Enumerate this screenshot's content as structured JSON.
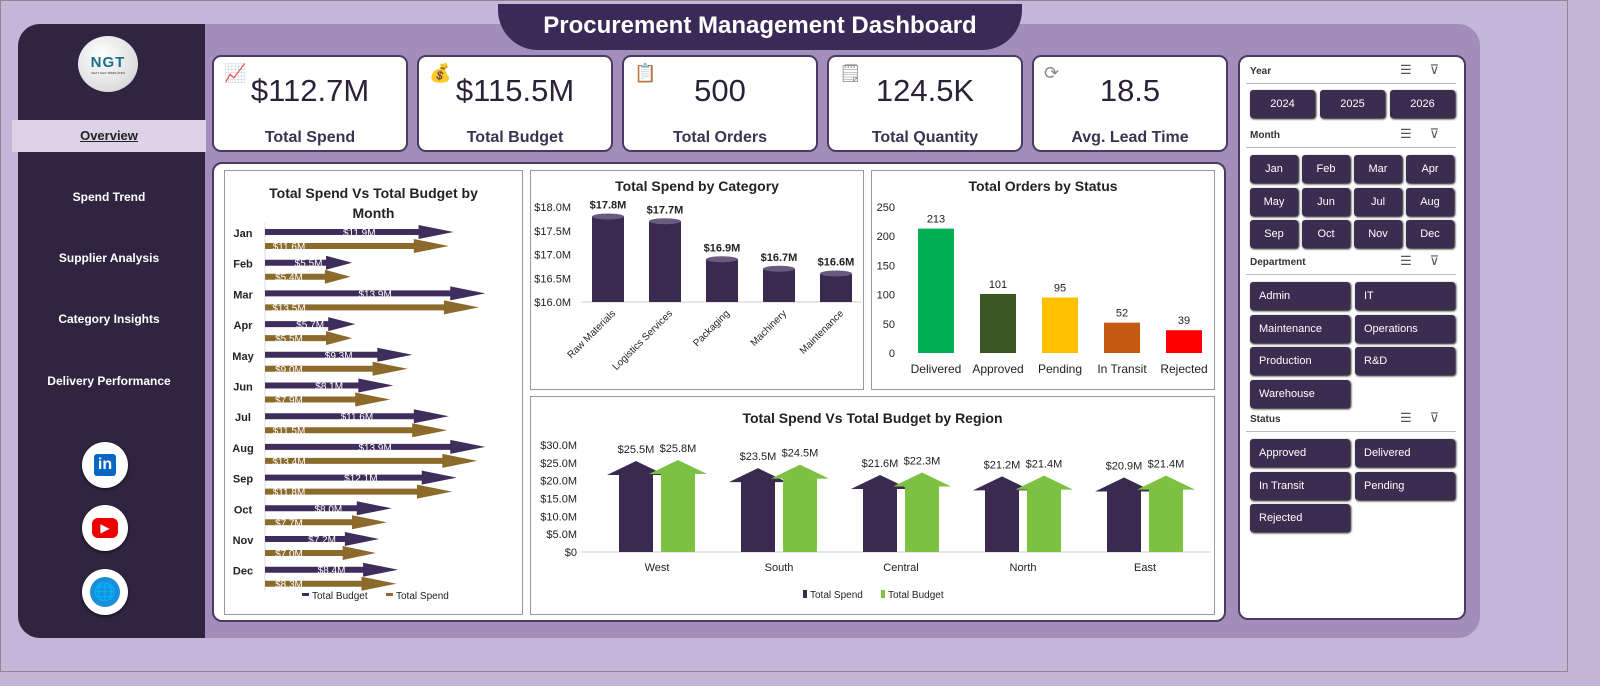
{
  "title": "Procurement Management Dashboard",
  "logo": {
    "text": "NGT",
    "subtitle": "NEXT GEN TEMPLATES"
  },
  "nav": [
    {
      "label": "Overview",
      "active": true
    },
    {
      "label": "Spend Trend"
    },
    {
      "label": "Supplier Analysis"
    },
    {
      "label": "Category Insights"
    },
    {
      "label": "Delivery Performance"
    }
  ],
  "social": [
    {
      "icon": "linkedin-icon",
      "label": "in"
    },
    {
      "icon": "youtube-icon",
      "label": "▶"
    },
    {
      "icon": "globe-icon",
      "label": "🌐"
    }
  ],
  "kpis": [
    {
      "value": "$112.7M",
      "label": "Total Spend",
      "icon": "chart-growth-icon"
    },
    {
      "value": "$115.5M",
      "label": "Total Budget",
      "icon": "money-bag-icon"
    },
    {
      "value": "500",
      "label": "Total Orders",
      "icon": "clipboard-icon"
    },
    {
      "value": "124.5K",
      "label": "Total Quantity",
      "icon": "checklist-icon"
    },
    {
      "value": "18.5",
      "label": "Avg. Lead Time",
      "icon": "cycle-icon"
    }
  ],
  "slicers": {
    "year": {
      "title": "Year",
      "items": [
        "2024",
        "2025",
        "2026"
      ]
    },
    "month": {
      "title": "Month",
      "items": [
        "Jan",
        "Feb",
        "Mar",
        "Apr",
        "May",
        "Jun",
        "Jul",
        "Aug",
        "Sep",
        "Oct",
        "Nov",
        "Dec"
      ]
    },
    "department": {
      "title": "Department",
      "items": [
        "Admin",
        "IT",
        "Maintenance",
        "Operations",
        "Production",
        "R&D",
        "Warehouse"
      ]
    },
    "status": {
      "title": "Status",
      "items": [
        "Approved",
        "Delivered",
        "In Transit",
        "Pending",
        "Rejected"
      ]
    }
  },
  "chart_data": [
    {
      "id": "month",
      "type": "bar",
      "orientation": "horizontal",
      "title": "Total Spend Vs Total Budget by Month",
      "categories": [
        "Jan",
        "Feb",
        "Mar",
        "Apr",
        "May",
        "Jun",
        "Jul",
        "Aug",
        "Sep",
        "Oct",
        "Nov",
        "Dec"
      ],
      "series": [
        {
          "name": "Total Budget",
          "color": "#3f2d5c",
          "values": [
            11.9,
            5.5,
            13.9,
            5.7,
            9.3,
            8.1,
            11.6,
            13.9,
            12.1,
            8.0,
            7.2,
            8.4
          ],
          "labels": [
            "$11.9M",
            "$5.5M",
            "$13.9M",
            "$5.7M",
            "$9.3M",
            "$8.1M",
            "$11.6M",
            "$13.9M",
            "$12.1M",
            "$8.0M",
            "$7.2M",
            "$8.4M"
          ]
        },
        {
          "name": "Total Spend",
          "color": "#8c6a2c",
          "values": [
            11.6,
            5.4,
            13.5,
            5.5,
            9.0,
            7.9,
            11.5,
            13.4,
            11.8,
            7.7,
            7.0,
            8.3
          ],
          "labels": [
            "$11.6M",
            "$5.4M",
            "$13.5M",
            "$5.5M",
            "$9.0M",
            "$7.9M",
            "$11.5M",
            "$13.4M",
            "$11.8M",
            "$7.7M",
            "$7.0M",
            "$8.3M"
          ]
        }
      ],
      "legend": "bottom"
    },
    {
      "id": "category",
      "type": "bar",
      "title": "Total Spend by Category",
      "categories": [
        "Raw Materials",
        "Logistics Services",
        "Packaging",
        "Machinery",
        "Maintenance"
      ],
      "values": [
        17.8,
        17.7,
        16.9,
        16.7,
        16.6
      ],
      "labels": [
        "$17.8M",
        "$17.7M",
        "$16.9M",
        "$16.7M",
        "$16.6M"
      ],
      "ylim": [
        16.0,
        18.0
      ],
      "yticks": [
        "$16.0M",
        "$16.5M",
        "$17.0M",
        "$17.5M",
        "$18.0M"
      ],
      "color": "#3a2a50"
    },
    {
      "id": "status",
      "type": "bar",
      "title": "Total Orders by Status",
      "categories": [
        "Delivered",
        "Approved",
        "Pending",
        "In Transit",
        "Rejected"
      ],
      "values": [
        213,
        101,
        95,
        52,
        39
      ],
      "colors": [
        "#00b050",
        "#385723",
        "#ffc000",
        "#c55a11",
        "#ff0000"
      ],
      "ylim": [
        0,
        250
      ],
      "yticks": [
        "0",
        "50",
        "100",
        "150",
        "200",
        "250"
      ]
    },
    {
      "id": "region",
      "type": "bar",
      "title": "Total Spend Vs Total Budget by Region",
      "categories": [
        "West",
        "South",
        "Central",
        "North",
        "East"
      ],
      "series": [
        {
          "name": "Total Spend",
          "color": "#3a2a50",
          "values": [
            25.5,
            23.5,
            21.6,
            21.2,
            20.9
          ],
          "labels": [
            "$25.5M",
            "$23.5M",
            "$21.6M",
            "$21.2M",
            "$20.9M"
          ]
        },
        {
          "name": "Total Budget",
          "color": "#7cc142",
          "values": [
            25.8,
            24.5,
            22.3,
            21.4,
            21.4
          ],
          "labels": [
            "$25.8M",
            "$24.5M",
            "$22.3M",
            "$21.4M",
            "$21.4M"
          ]
        }
      ],
      "ylim": [
        0,
        30
      ],
      "yticks": [
        "$0",
        "$5.0M",
        "$10.0M",
        "$15.0M",
        "$20.0M",
        "$25.0M",
        "$30.0M"
      ],
      "legend": "bottom"
    }
  ]
}
